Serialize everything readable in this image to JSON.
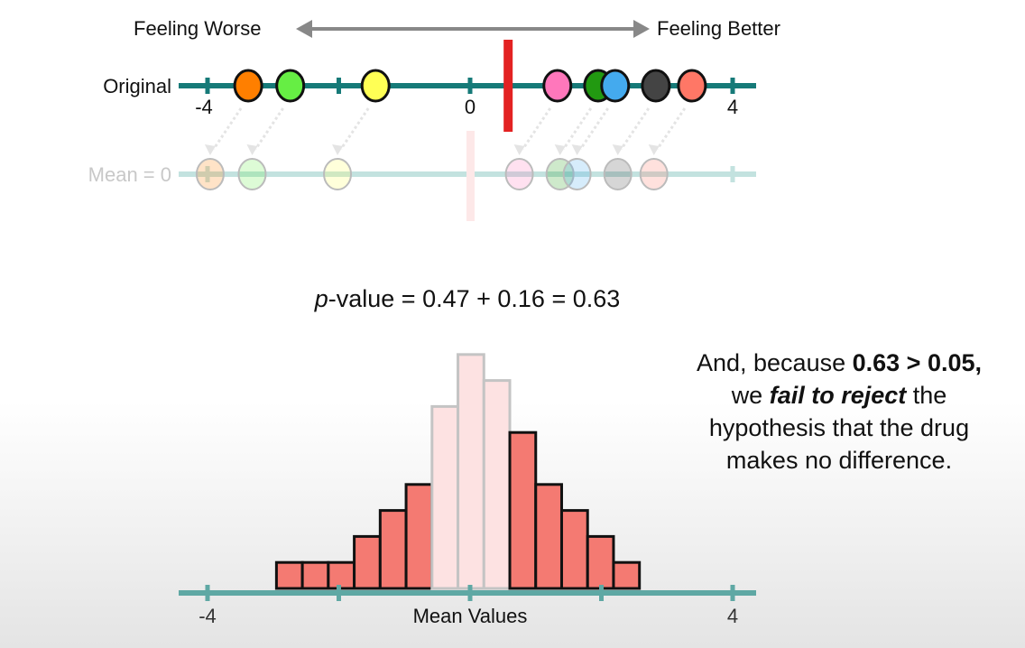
{
  "header": {
    "left_label": "Feeling Worse",
    "right_label": "Feeling Better"
  },
  "original_row": {
    "label": "Original",
    "tick_labels": [
      "-4",
      "0",
      "4"
    ],
    "mean_line_value": 0.58,
    "points": [
      {
        "value": -3.38,
        "color": "#ff7f00"
      },
      {
        "value": -2.74,
        "color": "#66ee44"
      },
      {
        "value": -1.44,
        "color": "#ffff55"
      },
      {
        "value": 1.33,
        "color": "#ff77bb"
      },
      {
        "value": 1.95,
        "color": "#229911"
      },
      {
        "value": 2.21,
        "color": "#44aaee"
      },
      {
        "value": 2.83,
        "color": "#444444"
      },
      {
        "value": 3.38,
        "color": "#ff7766"
      }
    ]
  },
  "shifted_row": {
    "label": "Mean = 0"
  },
  "pvalue": {
    "p": "p",
    "rest": "-value = 0.47 + 0.16 = 0.63"
  },
  "conclusion": {
    "l1a": "And, because ",
    "l1b": "0.63 > 0.05",
    "l1c": ",",
    "l2a": "we ",
    "l2b": "fail to reject",
    "l2c": " the",
    "l3": "hypothesis that the drug",
    "l4": "makes no difference."
  },
  "colors": {
    "axis": "#167a78",
    "axis_faded": "#c3e2df",
    "bar": "#f47a72",
    "bar_faded": "#fde2e2",
    "mean_line": "#e32222"
  },
  "chart_data": {
    "type": "bar",
    "title": "",
    "xlabel": "Mean Values",
    "ylabel": "",
    "xlim": [
      -4,
      4
    ],
    "x_tick_labels": [
      "-4",
      "4"
    ],
    "bin_start": -2.95,
    "bin_width": 0.395,
    "counts": [
      1,
      1,
      1,
      2,
      3,
      4,
      7,
      9,
      8,
      6,
      4,
      3,
      2,
      1
    ],
    "highlighted_tails": [
      true,
      true,
      true,
      true,
      true,
      true,
      false,
      false,
      false,
      true,
      true,
      true,
      true,
      true
    ]
  }
}
